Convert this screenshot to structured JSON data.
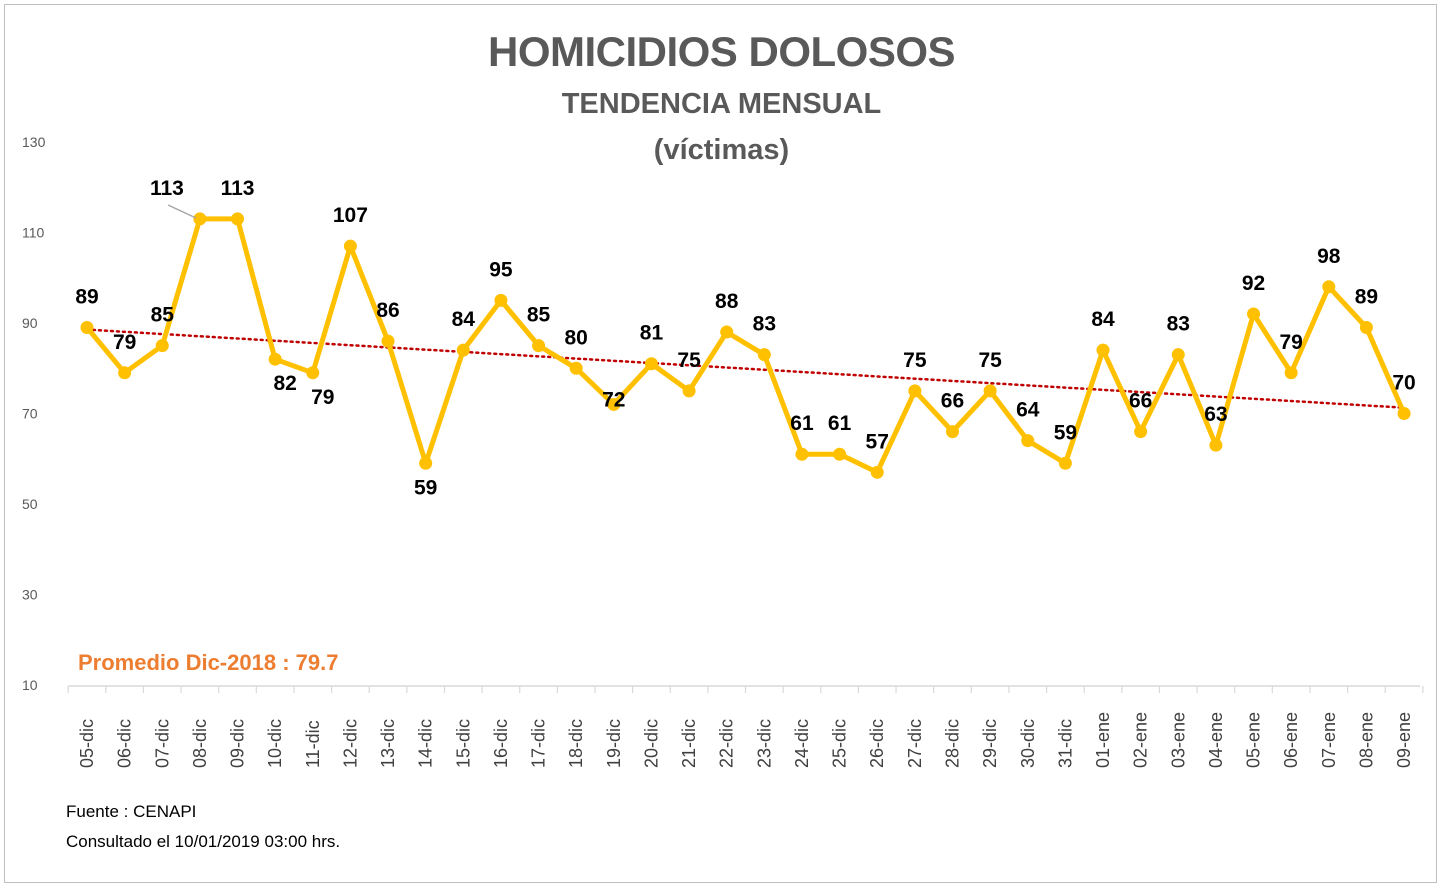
{
  "chart_data": {
    "type": "line",
    "title": "HOMICIDIOS DOLOSOS",
    "subtitle": "TENDENCIA MENSUAL",
    "subtitle2": "(víctimas)",
    "categories": [
      "05-dic",
      "06-dic",
      "07-dic",
      "08-dic",
      "09-dic",
      "10-dic",
      "11-dic",
      "12-dic",
      "13-dic",
      "14-dic",
      "15-dic",
      "16-dic",
      "17-dic",
      "18-dic",
      "19-dic",
      "20-dic",
      "21-dic",
      "22-dic",
      "23-dic",
      "24-dic",
      "25-dic",
      "26-dic",
      "27-dic",
      "28-dic",
      "29-dic",
      "30-dic",
      "31-dic",
      "01-ene",
      "02-ene",
      "03-ene",
      "04-ene",
      "05-ene",
      "06-ene",
      "07-ene",
      "08-ene",
      "09-ene"
    ],
    "values": [
      89,
      79,
      85,
      113,
      113,
      82,
      79,
      107,
      86,
      59,
      84,
      95,
      85,
      80,
      72,
      81,
      75,
      88,
      83,
      61,
      61,
      57,
      75,
      66,
      75,
      64,
      59,
      84,
      66,
      83,
      63,
      92,
      79,
      98,
      89,
      70
    ],
    "yticks": [
      10,
      30,
      50,
      70,
      90,
      110,
      130
    ],
    "ylim": [
      10,
      130
    ],
    "line_color": "#ffc000",
    "trend_color": "#c00000",
    "trendline": "linear",
    "grid": false,
    "annotation": "Promedio Dic-2018 : 79.7",
    "annotation_color": "#ed7d31"
  },
  "footer": {
    "source": "Fuente : CENAPI",
    "consulted": "Consultado el 10/01/2019  03:00 hrs."
  }
}
